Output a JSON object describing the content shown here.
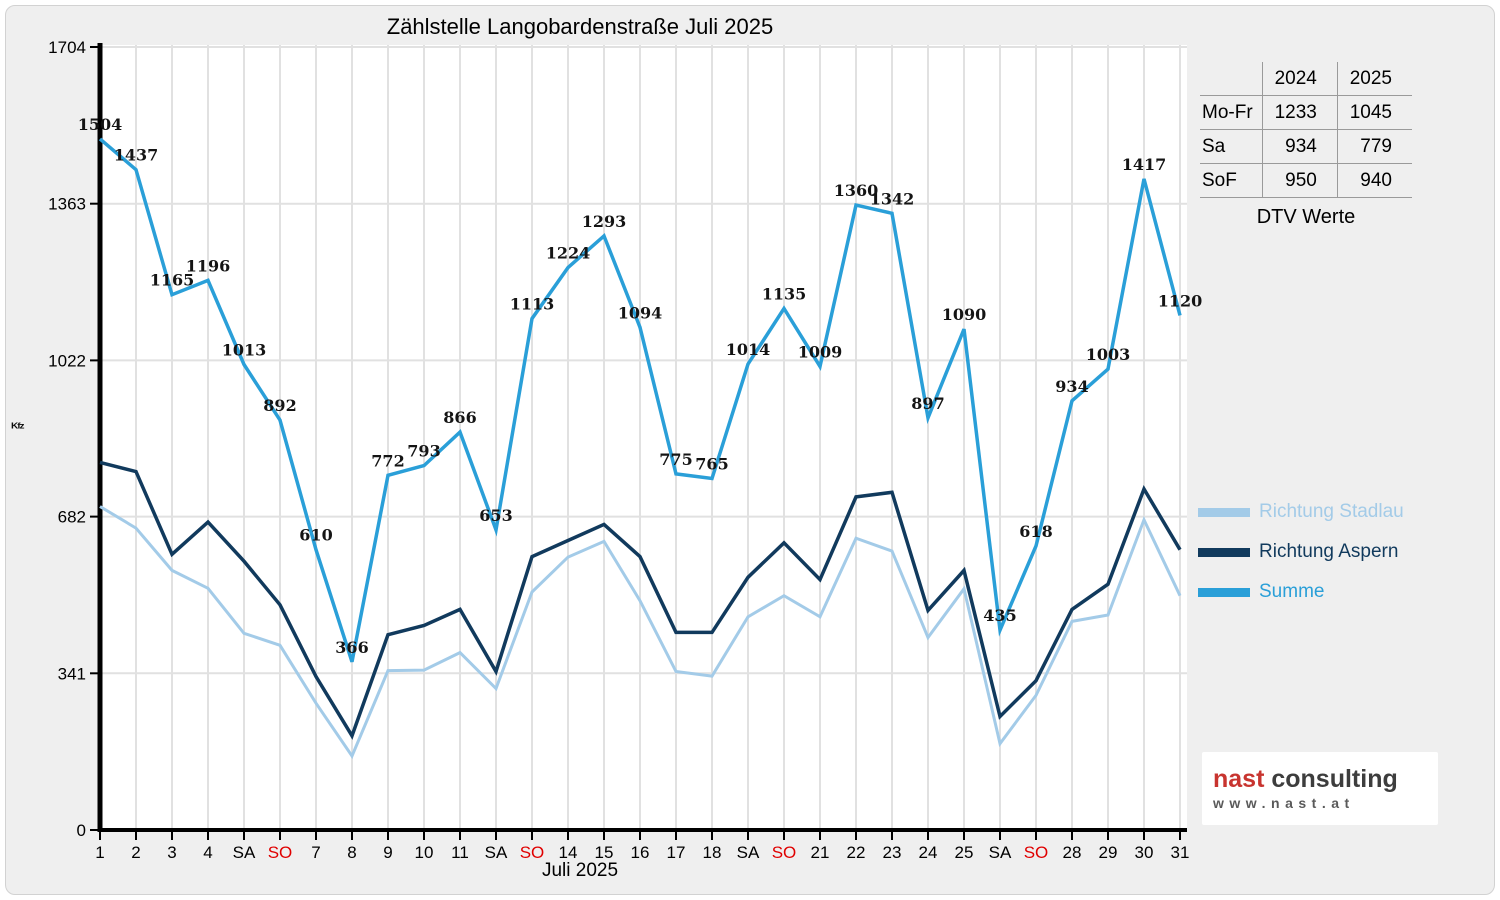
{
  "chart_data": {
    "type": "line",
    "title": "Zählstelle Langobardenstraße Juli 2025",
    "xlabel": "Juli 2025",
    "y_unit_label": "Kfz",
    "ylim": [
      0,
      1704
    ],
    "yticks": [
      0,
      341,
      682,
      1022,
      1363,
      1704
    ],
    "grid": true,
    "weekend_tick_color": "#e00000",
    "categories": [
      "1",
      "2",
      "3",
      "4",
      "SA",
      "SO",
      "7",
      "8",
      "9",
      "10",
      "11",
      "SA",
      "SO",
      "14",
      "15",
      "16",
      "17",
      "18",
      "SA",
      "SO",
      "21",
      "22",
      "23",
      "24",
      "25",
      "SA",
      "SO",
      "28",
      "29",
      "30",
      "31"
    ],
    "series": [
      {
        "name": "Richtung Stadlau",
        "color": "#a3cbe8",
        "width": 3,
        "show_labels": false,
        "values": [
          704,
          657,
          565,
          526,
          428,
          402,
          276,
          161,
          347,
          348,
          386,
          308,
          518,
          594,
          628,
          499,
          345,
          335,
          464,
          510,
          464,
          635,
          607,
          419,
          525,
          188,
          293,
          454,
          468,
          675,
          510
        ]
      },
      {
        "name": "Richtung Aspern",
        "color": "#113a5d",
        "width": 3.5,
        "show_labels": false,
        "values": [
          800,
          780,
          600,
          670,
          585,
          490,
          334,
          205,
          425,
          445,
          480,
          345,
          595,
          630,
          665,
          595,
          430,
          430,
          550,
          625,
          545,
          725,
          735,
          478,
          565,
          247,
          325,
          480,
          535,
          742,
          610
        ]
      },
      {
        "name": "Summe",
        "color": "#2a9fd8",
        "width": 3.5,
        "show_labels": true,
        "values": [
          1504,
          1437,
          1165,
          1196,
          1013,
          892,
          610,
          366,
          772,
          793,
          866,
          653,
          1113,
          1224,
          1293,
          1094,
          775,
          765,
          1014,
          1135,
          1009,
          1360,
          1342,
          897,
          1090,
          435,
          618,
          934,
          1003,
          1417,
          1120
        ]
      }
    ],
    "legend_position": "right"
  },
  "dtv_table": {
    "col_headers": [
      "2024",
      "2025"
    ],
    "rows": [
      {
        "label": "Mo-Fr",
        "y2024": "1233",
        "y2025": "1045"
      },
      {
        "label": "Sa",
        "y2024": "934",
        "y2025": "779"
      },
      {
        "label": "SoF",
        "y2024": "950",
        "y2025": "940"
      }
    ],
    "caption": "DTV Werte"
  },
  "logo": {
    "brand_primary": "nast",
    "brand_secondary": " consulting",
    "url": "www.nast.at"
  }
}
